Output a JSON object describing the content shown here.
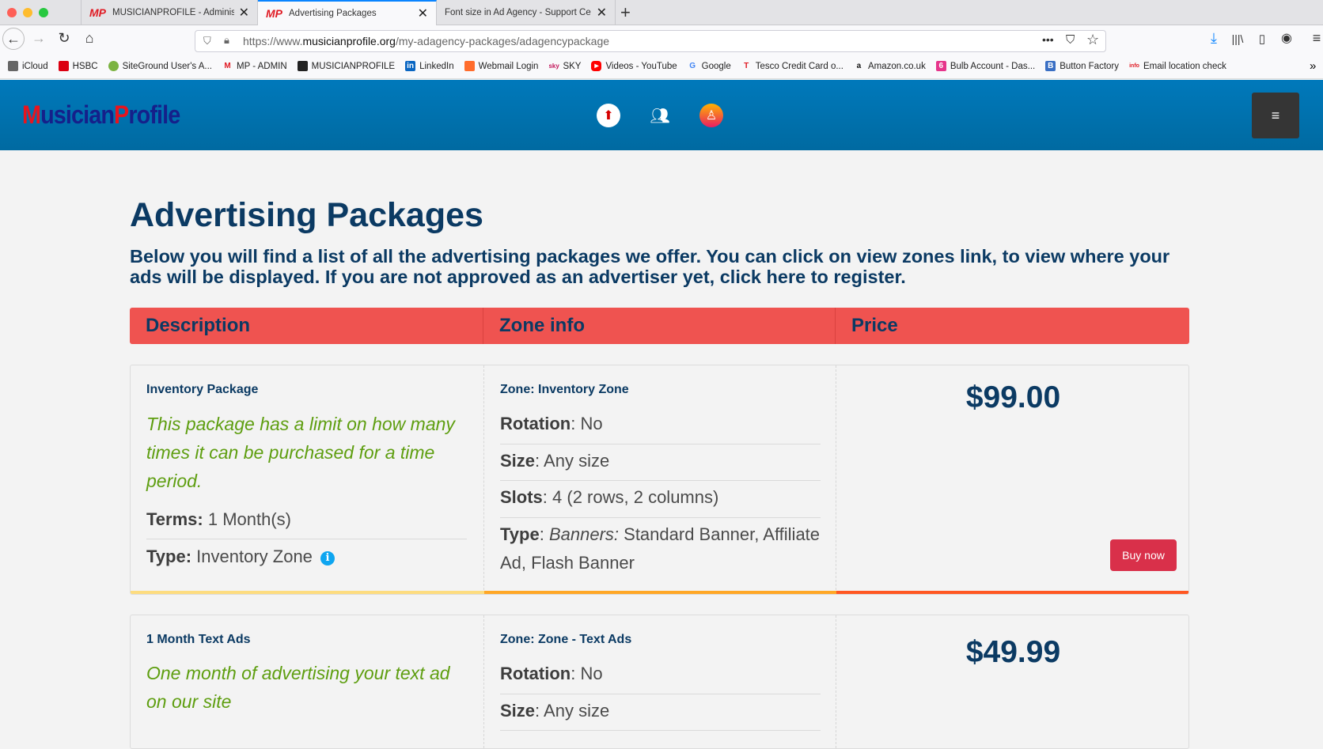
{
  "browser": {
    "tabs": [
      {
        "label": "MUSICIANPROFILE - Administra",
        "active": false
      },
      {
        "label": "Advertising Packages",
        "active": true
      },
      {
        "label": "Font size in Ad Agency - Support Ce",
        "active": false
      }
    ],
    "tab_favicon": "MP",
    "url_prefix": "https://www.",
    "url_domain": "musicianprofile.org",
    "url_path": "/my-adagency-packages/adagencypackage",
    "bookmarks": [
      "iCloud",
      "HSBC",
      "SiteGround User's A...",
      "MP - ADMIN",
      "MUSICIANPROFILE",
      "LinkedIn",
      "Webmail Login",
      "SKY",
      "Videos - YouTube",
      "Google",
      "Tesco Credit Card o...",
      "Amazon.co.uk",
      "Bulb Account - Das...",
      "Button Factory",
      "Email location check"
    ]
  },
  "site": {
    "logo_a": "M",
    "logo_b": "usician",
    "logo_c": "P",
    "logo_d": "rofile",
    "icons": [
      "home-icon",
      "users-icon",
      "profile-icon"
    ],
    "menu_icon": "≡"
  },
  "page": {
    "title": "Advertising Packages",
    "intro": "Below you will find a list of all the advertising packages we offer. You can click on view zones link, to view where your ads will be displayed. If you are not approved as an advertiser yet, click here to register.",
    "columns": [
      "Description",
      "Zone info",
      "Price"
    ],
    "packages": [
      {
        "name": "Inventory Package",
        "description": "This package has a limit on how many times it can be purchased for a time period.",
        "terms_label": "Terms:",
        "terms": "1 Month(s)",
        "type_label": "Type:",
        "type": "Inventory Zone",
        "zone": "Zone: Inventory Zone",
        "rotation": "No",
        "size": "Any size",
        "slots": "4 (2 rows, 2 columns)",
        "zone_type_italic": "Banners:",
        "zone_type": "Standard Banner, Affiliate Ad, Flash Banner",
        "price": "$99.00",
        "buy": "Buy now"
      },
      {
        "name": "1 Month Text Ads",
        "description": "One month of advertising your text ad on our site",
        "zone": "Zone: Zone - Text Ads",
        "rotation": "No",
        "size": "Any size",
        "price": "$49.99"
      }
    ],
    "labels": {
      "rotation": "Rotation",
      "size": "Size",
      "slots": "Slots",
      "type": "Type"
    }
  },
  "colors": {
    "header": "#0079bb",
    "table_header": "#ef5350",
    "buy": "#d9304a",
    "bar1": "#fddc7f",
    "bar2": "#ffa726",
    "bar3": "#ff5722",
    "green": "#5e9e10"
  }
}
